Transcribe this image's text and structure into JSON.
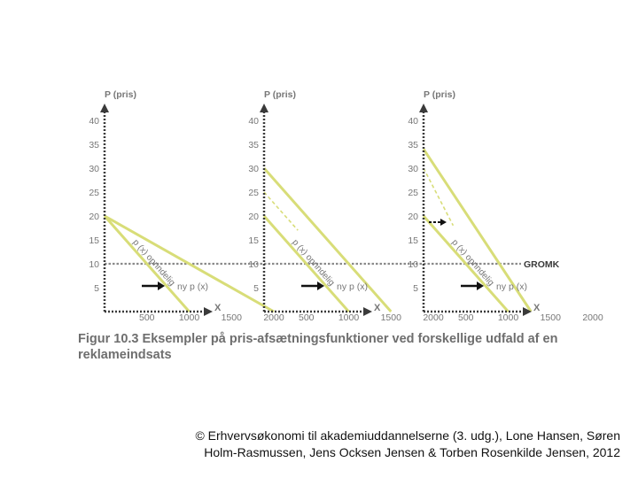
{
  "chart_data": [
    {
      "type": "line",
      "ylabel": "P (pris)",
      "xlabel": "X",
      "ylim": [
        0,
        40
      ],
      "xlim": [
        0,
        2000
      ],
      "yticks": [
        5,
        10,
        15,
        20,
        25,
        30,
        35,
        40
      ],
      "xticks": [
        500,
        1000,
        1500,
        2000
      ],
      "series": [
        {
          "name": "p (x) oprindelig",
          "x": [
            0,
            1000
          ],
          "y": [
            20,
            0
          ],
          "style": "solid"
        },
        {
          "name": "ny p (x)",
          "x": [
            0,
            2000
          ],
          "y": [
            20,
            0
          ],
          "style": "solid"
        }
      ],
      "hline": {
        "y": 10
      },
      "annotations": [
        {
          "text": "ny p (x)"
        }
      ]
    },
    {
      "type": "line",
      "ylabel": "P (pris)",
      "xlabel": "X",
      "ylim": [
        0,
        40
      ],
      "xlim": [
        0,
        2000
      ],
      "yticks": [
        5,
        10,
        15,
        20,
        25,
        30,
        35,
        40
      ],
      "xticks": [
        500,
        1000,
        1500,
        2000
      ],
      "series": [
        {
          "name": "p (x) oprindelig",
          "x": [
            0,
            1000
          ],
          "y": [
            20,
            0
          ],
          "style": "solid"
        },
        {
          "name": "ny p (x)",
          "x": [
            0,
            1500
          ],
          "y": [
            30,
            0
          ],
          "style": "solid"
        },
        {
          "name": "",
          "x": [
            0,
            400
          ],
          "y": [
            25,
            17
          ],
          "style": "dashed"
        }
      ],
      "hline": {
        "y": 10
      },
      "annotations": [
        {
          "text": "ny p (x)"
        }
      ]
    },
    {
      "type": "line",
      "ylabel": "P (pris)",
      "xlabel": "X",
      "ylim": [
        0,
        40
      ],
      "xlim": [
        0,
        2000
      ],
      "yticks": [
        5,
        10,
        15,
        20,
        25,
        30,
        35,
        40
      ],
      "xticks": [
        500,
        1000,
        1500,
        2000
      ],
      "series": [
        {
          "name": "p (x) oprindelig",
          "x": [
            0,
            1000
          ],
          "y": [
            20,
            0
          ],
          "style": "solid"
        },
        {
          "name": "ny p (x)",
          "x": [
            0,
            1270
          ],
          "y": [
            34,
            0
          ],
          "style": "solid"
        },
        {
          "name": "",
          "x": [
            0,
            350
          ],
          "y": [
            30,
            18
          ],
          "style": "dashed"
        }
      ],
      "hline": {
        "y": 10,
        "label": "GROMK"
      },
      "annotations": [
        {
          "text": "ny p (x)"
        }
      ]
    }
  ],
  "colors": {
    "axis": "#3a3a3a",
    "tick_text": "#777777",
    "curve": "#d8dd78",
    "hline": "#8a8a8a",
    "caption": "#6e6e6e"
  },
  "caption": "Figur 10.3  Eksempler på pris-afsætningsfunktioner ved forskellige udfald af en reklameindsats",
  "copyright": {
    "line1": "© Erhvervsøkonomi til akademiuddannelserne (3. udg.), Lone Hansen, Søren",
    "line2": "Holm-Rasmussen, Jens Ocksen Jensen & Torben Rosenkilde Jensen, 2012"
  }
}
